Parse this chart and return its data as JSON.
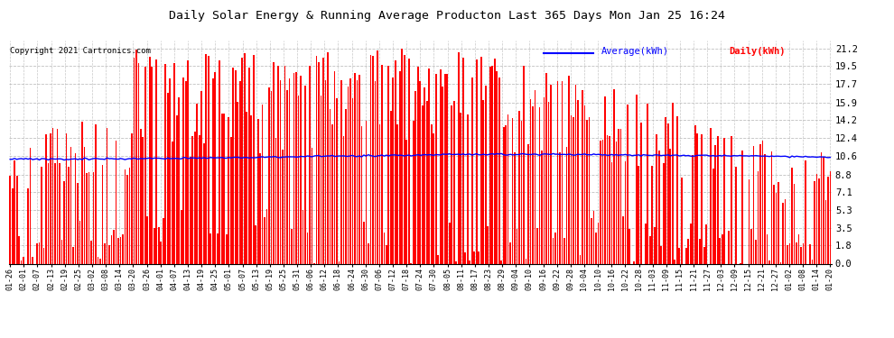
{
  "title": "Daily Solar Energy & Running Average Producton Last 365 Days Mon Jan 25 16:24",
  "copyright": "Copyright 2021 Cartronics.com",
  "legend_avg": "Average(kWh)",
  "legend_daily": "Daily(kWh)",
  "avg_color": "#0000ff",
  "bar_color": "#ff0000",
  "background_color": "#ffffff",
  "grid_color": "#b0b0b0",
  "title_color": "#000000",
  "yticks": [
    0.0,
    1.8,
    3.5,
    5.3,
    7.1,
    8.8,
    10.6,
    12.4,
    14.2,
    15.9,
    17.7,
    19.5,
    21.2
  ],
  "ylim": [
    0.0,
    22.0
  ],
  "figsize": [
    9.9,
    3.75
  ],
  "dpi": 100,
  "xtick_labels": [
    "01-26",
    "02-01",
    "02-07",
    "02-13",
    "02-19",
    "02-25",
    "03-02",
    "03-08",
    "03-14",
    "03-20",
    "03-26",
    "04-01",
    "04-07",
    "04-13",
    "04-19",
    "04-25",
    "05-01",
    "05-07",
    "05-13",
    "05-19",
    "05-25",
    "05-31",
    "06-06",
    "06-12",
    "06-18",
    "06-24",
    "06-30",
    "07-06",
    "07-12",
    "07-18",
    "07-24",
    "07-30",
    "08-05",
    "08-11",
    "08-17",
    "08-23",
    "08-29",
    "09-04",
    "09-10",
    "09-16",
    "09-22",
    "09-28",
    "10-04",
    "10-10",
    "10-16",
    "10-22",
    "10-28",
    "11-03",
    "11-09",
    "11-15",
    "11-21",
    "11-27",
    "12-03",
    "12-09",
    "12-15",
    "12-21",
    "12-27",
    "01-02",
    "01-08",
    "01-14",
    "01-20"
  ],
  "avg_line_values": [
    10.35,
    10.33,
    10.32,
    10.31,
    10.3,
    10.31,
    10.32,
    10.33,
    10.33,
    10.34,
    10.35,
    10.36,
    10.37,
    10.38,
    10.4,
    10.42,
    10.44,
    10.46,
    10.48,
    10.5,
    10.52,
    10.54,
    10.56,
    10.58,
    10.6,
    10.62,
    10.64,
    10.66,
    10.68,
    10.7,
    10.72,
    10.74,
    10.75,
    10.76,
    10.77,
    10.77,
    10.76,
    10.76,
    10.77,
    10.77,
    10.76,
    10.75,
    10.75,
    10.74,
    10.73,
    10.72,
    10.71,
    10.7,
    10.69,
    10.68,
    10.67,
    10.66,
    10.65,
    10.64,
    10.62,
    10.6,
    10.58,
    10.56,
    10.54,
    10.52,
    10.5
  ]
}
